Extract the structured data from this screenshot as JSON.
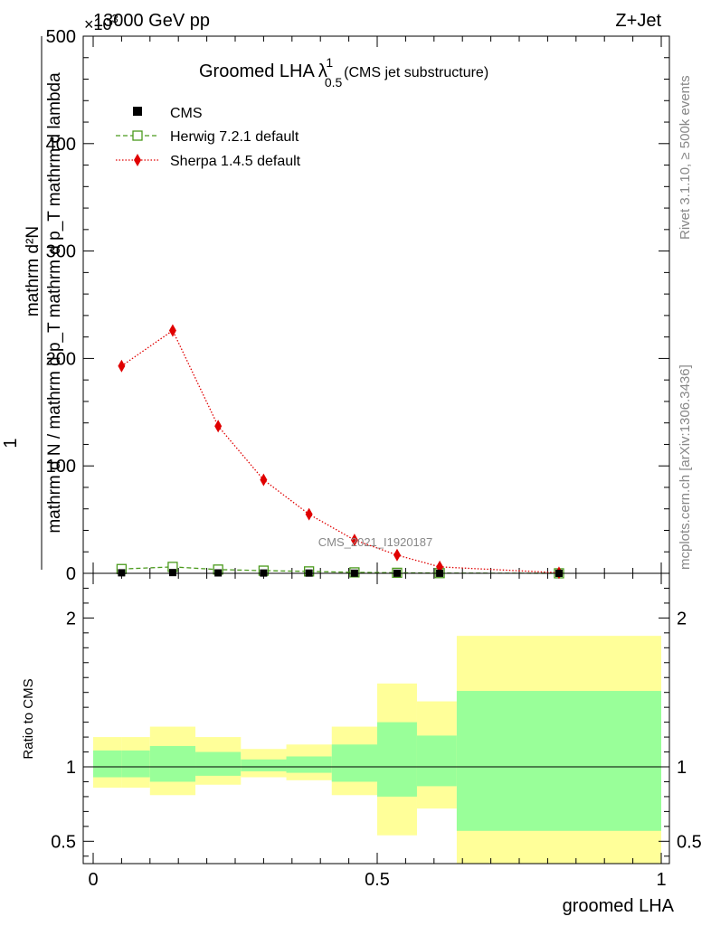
{
  "header": {
    "energy": "13000 GeV pp",
    "process": "Z+Jet",
    "exponent": "×10",
    "exponent_power": "3"
  },
  "side": {
    "rivet": "Rivet 3.1.10, ≥ 500k events",
    "mcplots": "mcplots.cern.ch [arXiv:1306.3436]"
  },
  "main": {
    "title_main": "Groomed LHA",
    "title_lambda": "λ",
    "title_sub": "0.5",
    "title_sup": "1",
    "title_note": "(CMS jet substructure)",
    "ylabel_top": "1",
    "ylabel_numerator": "mathrm d²N",
    "ylabel_denominator": "mathrm d N / mathrm d p_T mathrm d p_T mathrm d lambda",
    "watermark": "CMS_2021_I1920187"
  },
  "ratio": {
    "ylabel": "Ratio to CMS"
  },
  "chart_data": {
    "type": "line",
    "xlabel": "groomed LHA",
    "xlim": [
      0,
      1
    ],
    "ylim": [
      0,
      500000
    ],
    "y_scale_factor": 1000,
    "x_ticks": [
      "0",
      "0.5",
      "1"
    ],
    "y_ticks": [
      "0",
      "100",
      "200",
      "300",
      "400",
      "500"
    ],
    "ratio_ylim": [
      0.35,
      2.3
    ],
    "ratio_ticks": [
      "0.5",
      "1",
      "2"
    ],
    "colors": {
      "cms": "#000000",
      "herwig": "#4a9a1c",
      "sherpa": "#e00000",
      "band_inner": "#99ff99",
      "band_outer": "#ffff99"
    },
    "series": [
      {
        "name": "CMS",
        "x": [
          0.05,
          0.14,
          0.22,
          0.3,
          0.38,
          0.46,
          0.535,
          0.61,
          0.82
        ],
        "y": [
          500,
          700,
          400,
          300,
          250,
          150,
          100,
          50,
          10
        ]
      },
      {
        "name": "Herwig 7.2.1 default",
        "x": [
          0.05,
          0.14,
          0.22,
          0.3,
          0.38,
          0.46,
          0.535,
          0.61,
          0.82
        ],
        "y": [
          4000,
          6000,
          3500,
          2500,
          1800,
          900,
          500,
          200,
          30
        ]
      },
      {
        "name": "Sherpa 1.4.5 default",
        "x": [
          0.05,
          0.14,
          0.22,
          0.3,
          0.38,
          0.46,
          0.535,
          0.61,
          0.82
        ],
        "y": [
          193000,
          226000,
          137000,
          87000,
          55000,
          31000,
          17000,
          6000,
          500
        ]
      }
    ],
    "ratio_bands": [
      {
        "xmin": 0.0,
        "xmax": 0.05,
        "inner": [
          0.93,
          1.11
        ],
        "outer": [
          0.86,
          1.2
        ]
      },
      {
        "xmin": 0.05,
        "xmax": 0.1,
        "inner": [
          0.93,
          1.11
        ],
        "outer": [
          0.86,
          1.2
        ]
      },
      {
        "xmin": 0.1,
        "xmax": 0.18,
        "inner": [
          0.9,
          1.14
        ],
        "outer": [
          0.81,
          1.27
        ]
      },
      {
        "xmin": 0.18,
        "xmax": 0.26,
        "inner": [
          0.94,
          1.1
        ],
        "outer": [
          0.88,
          1.2
        ]
      },
      {
        "xmin": 0.26,
        "xmax": 0.34,
        "inner": [
          0.97,
          1.05
        ],
        "outer": [
          0.93,
          1.12
        ]
      },
      {
        "xmin": 0.34,
        "xmax": 0.42,
        "inner": [
          0.96,
          1.07
        ],
        "outer": [
          0.91,
          1.15
        ]
      },
      {
        "xmin": 0.42,
        "xmax": 0.5,
        "inner": [
          0.9,
          1.15
        ],
        "outer": [
          0.81,
          1.27
        ]
      },
      {
        "xmin": 0.5,
        "xmax": 0.57,
        "inner": [
          0.8,
          1.3
        ],
        "outer": [
          0.54,
          1.56
        ]
      },
      {
        "xmin": 0.57,
        "xmax": 0.64,
        "inner": [
          0.87,
          1.21
        ],
        "outer": [
          0.72,
          1.44
        ]
      },
      {
        "xmin": 0.64,
        "xmax": 1.0,
        "inner": [
          0.57,
          1.51
        ],
        "outer": [
          0.3,
          1.88
        ]
      }
    ]
  }
}
